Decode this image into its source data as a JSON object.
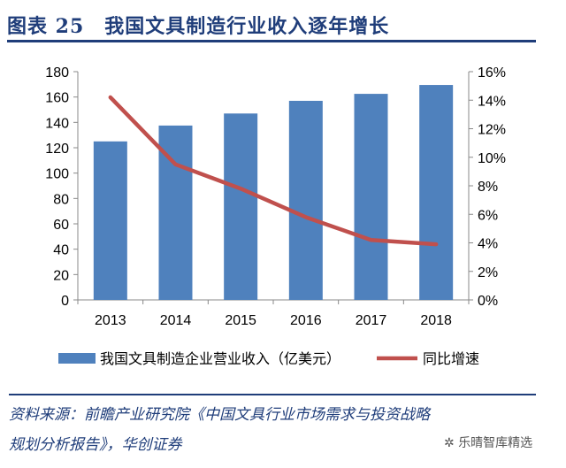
{
  "title": "图表 25　我国文具制造行业收入逐年增长",
  "source_line1": "资料来源：前瞻产业研究院《中国文具行业市场需求与投资战略",
  "source_line2": "规划分析报告》，华创证券",
  "watermark": "乐晴智库精选",
  "chart_data": {
    "type": "bar+line",
    "categories": [
      "2013",
      "2014",
      "2015",
      "2016",
      "2017",
      "2018"
    ],
    "series": [
      {
        "name": "我国文具制造企业营业收入（亿美元）",
        "type": "bar",
        "axis": "left",
        "color": "#4f81bd",
        "values": [
          125,
          137.5,
          147,
          157,
          162.5,
          169.5
        ]
      },
      {
        "name": "同比增速",
        "type": "line",
        "axis": "right",
        "color": "#c0504d",
        "values": [
          14.2,
          9.5,
          7.8,
          5.8,
          4.2,
          3.9
        ]
      }
    ],
    "left_axis": {
      "ylim": [
        0,
        180
      ],
      "ticks": [
        "0",
        "20",
        "40",
        "60",
        "80",
        "100",
        "120",
        "140",
        "160",
        "180"
      ]
    },
    "right_axis": {
      "ylim": [
        0,
        16
      ],
      "ticks": [
        "0%",
        "2%",
        "4%",
        "6%",
        "8%",
        "10%",
        "12%",
        "14%",
        "16%"
      ]
    },
    "grid": false,
    "legend": "bottom"
  }
}
